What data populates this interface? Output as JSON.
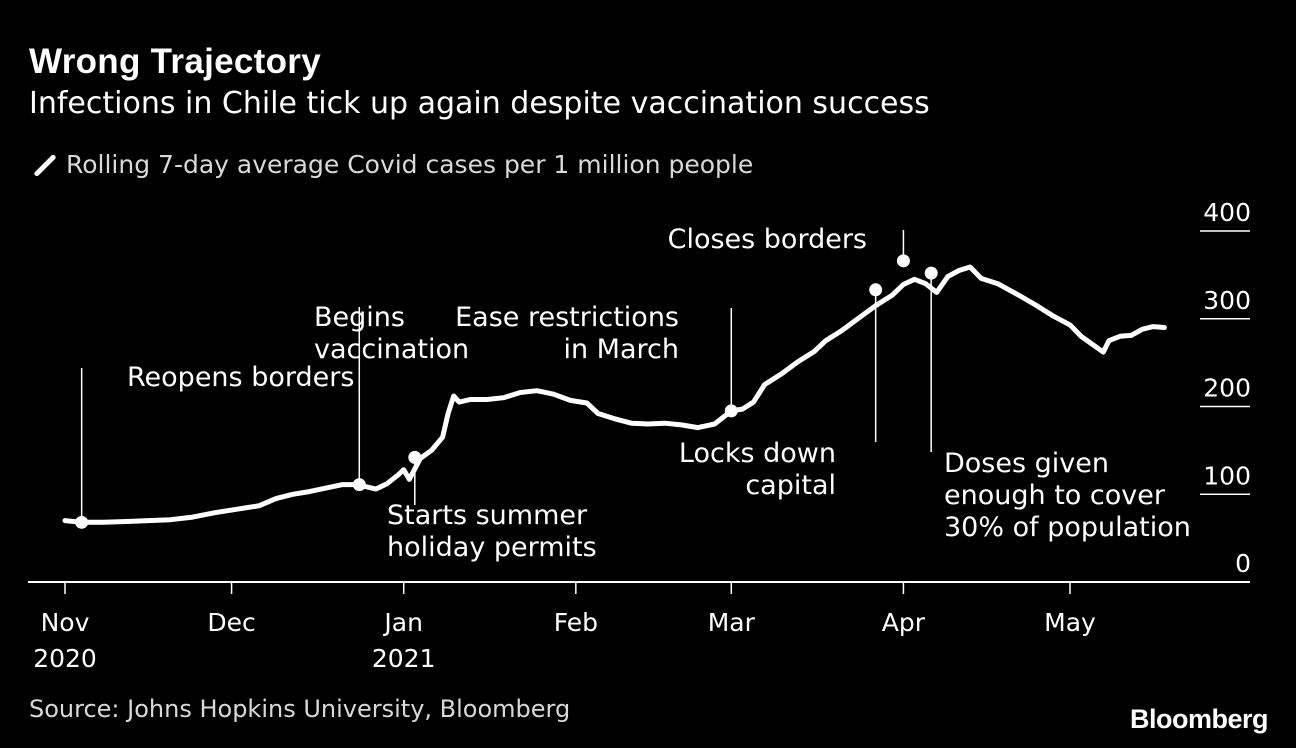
{
  "header": {
    "title": "Wrong Trajectory",
    "subtitle": "Infections in Chile tick up again despite vaccination success",
    "legend_label": "Rolling 7-day average Covid cases per 1 million people"
  },
  "footer": {
    "source": "Source: Johns Hopkins University, Bloomberg",
    "brand": "Bloomberg"
  },
  "colors": {
    "background": "#000000",
    "line": "#ffffff",
    "muted_text": "#d9d9d9"
  },
  "chart_data": {
    "type": "line",
    "title": "Wrong Trajectory",
    "subtitle": "Infections in Chile tick up again despite vaccination success",
    "ylim": [
      0,
      400
    ],
    "y_ticks": [
      "400",
      "300",
      "200",
      "100",
      "0"
    ],
    "y_tick_values": [
      400,
      300,
      200,
      100,
      0
    ],
    "x_ticks": [
      {
        "label": "Nov",
        "year": "2020",
        "date": "2020-11-01"
      },
      {
        "label": "Dec",
        "year": "",
        "date": "2020-12-01"
      },
      {
        "label": "Jan",
        "year": "2021",
        "date": "2021-01-01"
      },
      {
        "label": "Feb",
        "year": "",
        "date": "2021-02-01"
      },
      {
        "label": "Mar",
        "year": "",
        "date": "2021-03-01"
      },
      {
        "label": "Apr",
        "year": "",
        "date": "2021-04-01"
      },
      {
        "label": "May",
        "year": "",
        "date": "2021-05-01"
      }
    ],
    "series": [
      {
        "name": "Rolling 7-day average Covid cases per 1 million people",
        "points": [
          [
            "2020-11-01",
            70
          ],
          [
            "2020-11-04",
            68
          ],
          [
            "2020-11-08",
            68
          ],
          [
            "2020-11-12",
            69
          ],
          [
            "2020-11-16",
            70
          ],
          [
            "2020-11-20",
            71
          ],
          [
            "2020-11-24",
            74
          ],
          [
            "2020-11-28",
            79
          ],
          [
            "2020-12-02",
            83
          ],
          [
            "2020-12-06",
            87
          ],
          [
            "2020-12-09",
            95
          ],
          [
            "2020-12-12",
            100
          ],
          [
            "2020-12-15",
            103
          ],
          [
            "2020-12-18",
            107
          ],
          [
            "2020-12-21",
            111
          ],
          [
            "2020-12-23",
            111
          ],
          [
            "2020-12-25",
            109
          ],
          [
            "2020-12-27",
            106
          ],
          [
            "2020-12-29",
            112
          ],
          [
            "2020-12-31",
            122
          ],
          [
            "2021-01-01",
            128
          ],
          [
            "2021-01-02",
            117
          ],
          [
            "2021-01-04",
            141
          ],
          [
            "2021-01-06",
            150
          ],
          [
            "2021-01-08",
            165
          ],
          [
            "2021-01-09",
            192
          ],
          [
            "2021-01-10",
            212
          ],
          [
            "2021-01-11",
            205
          ],
          [
            "2021-01-13",
            208
          ],
          [
            "2021-01-16",
            208
          ],
          [
            "2021-01-19",
            210
          ],
          [
            "2021-01-22",
            216
          ],
          [
            "2021-01-25",
            218
          ],
          [
            "2021-01-28",
            214
          ],
          [
            "2021-01-31",
            207
          ],
          [
            "2021-02-03",
            204
          ],
          [
            "2021-02-05",
            192
          ],
          [
            "2021-02-08",
            186
          ],
          [
            "2021-02-11",
            181
          ],
          [
            "2021-02-14",
            180
          ],
          [
            "2021-02-17",
            181
          ],
          [
            "2021-02-20",
            179
          ],
          [
            "2021-02-23",
            176
          ],
          [
            "2021-02-26",
            180
          ],
          [
            "2021-03-01",
            195
          ],
          [
            "2021-03-03",
            197
          ],
          [
            "2021-03-05",
            205
          ],
          [
            "2021-03-07",
            225
          ],
          [
            "2021-03-10",
            237
          ],
          [
            "2021-03-13",
            251
          ],
          [
            "2021-03-16",
            263
          ],
          [
            "2021-03-18",
            275
          ],
          [
            "2021-03-21",
            287
          ],
          [
            "2021-03-24",
            301
          ],
          [
            "2021-03-27",
            315
          ],
          [
            "2021-03-30",
            327
          ],
          [
            "2021-04-01",
            339
          ],
          [
            "2021-04-03",
            345
          ],
          [
            "2021-04-05",
            340
          ],
          [
            "2021-04-07",
            330
          ],
          [
            "2021-04-09",
            348
          ],
          [
            "2021-04-11",
            355
          ],
          [
            "2021-04-13",
            359
          ],
          [
            "2021-04-15",
            346
          ],
          [
            "2021-04-18",
            340
          ],
          [
            "2021-04-20",
            333
          ],
          [
            "2021-04-22",
            326
          ],
          [
            "2021-04-25",
            315
          ],
          [
            "2021-04-28",
            303
          ],
          [
            "2021-05-01",
            293
          ],
          [
            "2021-05-03",
            280
          ],
          [
            "2021-05-05",
            271
          ],
          [
            "2021-05-07",
            262
          ],
          [
            "2021-05-08",
            275
          ],
          [
            "2021-05-10",
            280
          ],
          [
            "2021-05-12",
            281
          ],
          [
            "2021-05-14",
            288
          ],
          [
            "2021-05-16",
            291
          ],
          [
            "2021-05-18",
            290
          ]
        ]
      }
    ],
    "annotations": [
      {
        "label": "Reopens borders",
        "date": "2020-11-04",
        "value": 68
      },
      {
        "label": "Begins\nvaccination",
        "date": "2020-12-24",
        "value": 111
      },
      {
        "label": "Starts summer\nholiday permits",
        "date": "2021-01-03",
        "value": 142
      },
      {
        "label": "Ease restrictions\nin March",
        "date": "2021-03-01",
        "value": 195
      },
      {
        "label": "Locks down\ncapital",
        "date": "2021-03-27",
        "value": 333
      },
      {
        "label": "Closes borders",
        "date": "2021-04-01",
        "value": 366
      },
      {
        "label": "Doses given\nenough to cover\n30% of population",
        "date": "2021-04-06",
        "value": 352
      }
    ]
  }
}
